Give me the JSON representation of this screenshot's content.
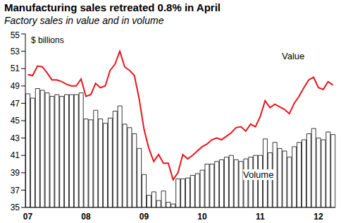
{
  "chart_data": {
    "type": "bar",
    "title": "Manufacturing sales retreated 0.8% in April",
    "subtitle": "Factory sales in value and in volume",
    "y_label": "$ billions",
    "categories": [
      "07",
      null,
      null,
      null,
      null,
      null,
      null,
      null,
      null,
      null,
      null,
      null,
      "08",
      null,
      null,
      null,
      null,
      null,
      null,
      null,
      null,
      null,
      null,
      null,
      "09",
      null,
      null,
      null,
      null,
      null,
      null,
      null,
      null,
      null,
      null,
      null,
      "10",
      null,
      null,
      null,
      null,
      null,
      null,
      null,
      null,
      null,
      null,
      null,
      "11",
      null,
      null,
      null,
      null,
      null,
      null,
      null,
      null,
      null,
      null,
      null,
      "12",
      null,
      null,
      null
    ],
    "series": [
      {
        "name": "Volume",
        "type": "bar",
        "color": "#ffffff",
        "values": [
          48.1,
          47.6,
          48.7,
          48.5,
          48.2,
          47.8,
          48.0,
          47.8,
          48.0,
          48.0,
          48.0,
          48.2,
          45.2,
          45.1,
          46.2,
          45.2,
          44.7,
          45.3,
          46.1,
          46.7,
          44.6,
          44.2,
          43.5,
          41.8,
          38.8,
          36.4,
          36.8,
          35.8,
          36.9,
          35.6,
          35.4,
          38.3,
          38.3,
          38.4,
          38.7,
          38.9,
          39.3,
          40.0,
          40.0,
          40.3,
          40.5,
          40.8,
          41.0,
          40.5,
          40.3,
          40.6,
          40.8,
          41.0,
          41.0,
          42.9,
          41.3,
          42.5,
          41.8,
          41.5,
          40.8,
          42.0,
          42.5,
          42.8,
          43.5,
          44.1,
          43.0,
          42.8,
          43.7,
          43.4
        ]
      },
      {
        "name": "Value",
        "type": "line",
        "color": "#e8141b",
        "values": [
          50.3,
          50.2,
          51.3,
          51.2,
          50.5,
          49.7,
          49.7,
          49.5,
          49.2,
          49.0,
          49.0,
          49.8,
          47.8,
          48.0,
          49.3,
          48.8,
          49.0,
          50.8,
          51.5,
          53.0,
          51.2,
          50.8,
          50.2,
          47.5,
          44.0,
          41.8,
          40.3,
          41.1,
          40.1,
          40.1,
          38.2,
          39.0,
          41.1,
          40.6,
          41.0,
          41.5,
          42.0,
          42.3,
          42.8,
          43.0,
          42.8,
          43.2,
          43.6,
          44.2,
          44.3,
          43.8,
          44.6,
          44.3,
          45.5,
          47.3,
          46.5,
          46.9,
          46.6,
          46.3,
          45.8,
          47.0,
          47.8,
          48.8,
          49.7,
          50.0,
          48.8,
          48.6,
          49.5,
          49.1
        ]
      }
    ],
    "ylim": [
      35,
      55
    ],
    "yticks": [
      35,
      37,
      39,
      41,
      43,
      45,
      47,
      49,
      51,
      53,
      55
    ],
    "grid": false
  }
}
